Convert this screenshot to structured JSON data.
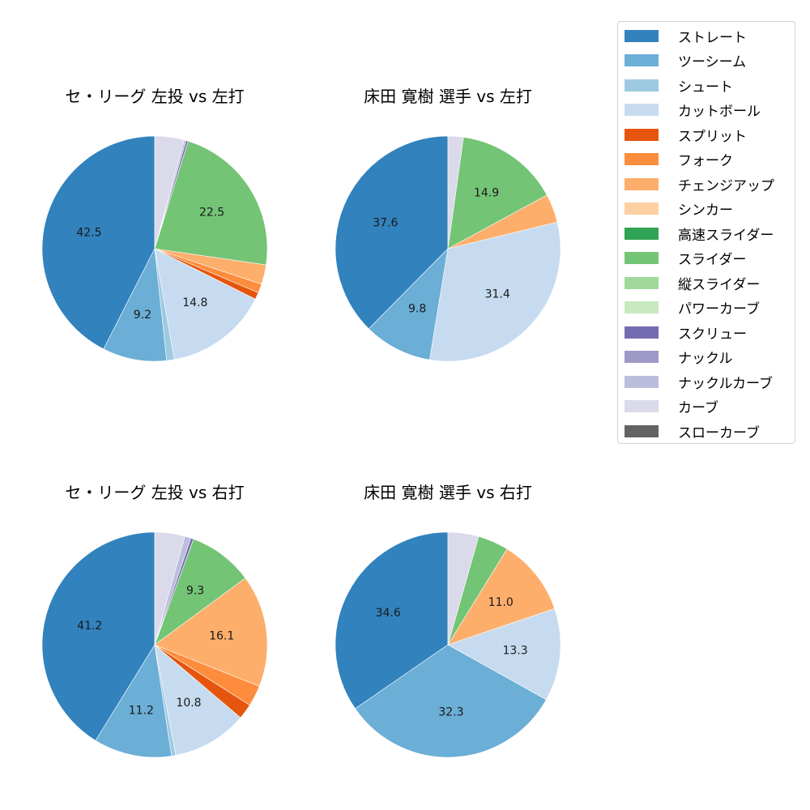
{
  "chart_data": [
    {
      "type": "pie",
      "title": "セ・リーグ 左投 vs 左打",
      "categories": [
        "ストレート",
        "ツーシーム",
        "シュート",
        "カットボール",
        "スプリット",
        "フォーク",
        "チェンジアップ",
        "スライダー",
        "スクリュー",
        "ナックルカーブ",
        "カーブ"
      ],
      "values": [
        42.5,
        9.2,
        1.1,
        14.8,
        1.0,
        1.3,
        2.8,
        22.5,
        0.3,
        0.3,
        4.2
      ],
      "labels_shown": [
        "42.5",
        "9.2",
        "",
        "14.8",
        "",
        "",
        "",
        "22.5",
        "",
        "",
        ""
      ],
      "start_angle": 90,
      "direction": "counterclockwise"
    },
    {
      "type": "pie",
      "title": "床田 寛樹 選手 vs 左打",
      "categories": [
        "ストレート",
        "ツーシーム",
        "カットボール",
        "チェンジアップ",
        "スライダー",
        "カーブ"
      ],
      "values": [
        37.6,
        9.8,
        31.4,
        4.1,
        14.9,
        2.2
      ],
      "labels_shown": [
        "37.6",
        "9.8",
        "31.4",
        "",
        "14.9",
        ""
      ],
      "start_angle": 90,
      "direction": "counterclockwise"
    },
    {
      "type": "pie",
      "title": "セ・リーグ 左投 vs 右打",
      "categories": [
        "ストレート",
        "ツーシーム",
        "シュート",
        "カットボール",
        "スプリット",
        "フォーク",
        "チェンジアップ",
        "スライダー",
        "スクリュー",
        "ナックルカーブ",
        "カーブ"
      ],
      "values": [
        41.2,
        11.2,
        0.6,
        10.8,
        2.2,
        3.0,
        16.1,
        9.3,
        0.4,
        0.9,
        4.3
      ],
      "labels_shown": [
        "41.2",
        "11.2",
        "",
        "10.8",
        "",
        "",
        "16.1",
        "9.3",
        "",
        "",
        ""
      ],
      "start_angle": 90,
      "direction": "counterclockwise"
    },
    {
      "type": "pie",
      "title": "床田 寛樹 選手 vs 右打",
      "categories": [
        "ストレート",
        "ツーシーム",
        "カットボール",
        "チェンジアップ",
        "スライダー",
        "カーブ"
      ],
      "values": [
        34.6,
        32.3,
        13.3,
        11.0,
        4.4,
        4.4
      ],
      "labels_shown": [
        "34.6",
        "32.3",
        "13.3",
        "11.0",
        "",
        ""
      ],
      "start_angle": 90,
      "direction": "counterclockwise"
    }
  ],
  "legend": {
    "items": [
      {
        "label": "ストレート",
        "color": "#3182bd"
      },
      {
        "label": "ツーシーム",
        "color": "#6baed6"
      },
      {
        "label": "シュート",
        "color": "#9ecae1"
      },
      {
        "label": "カットボール",
        "color": "#c6dbef"
      },
      {
        "label": "スプリット",
        "color": "#e6550d"
      },
      {
        "label": "フォーク",
        "color": "#fd8d3c"
      },
      {
        "label": "チェンジアップ",
        "color": "#fdae6b"
      },
      {
        "label": "シンカー",
        "color": "#fdd0a2"
      },
      {
        "label": "高速スライダー",
        "color": "#31a354"
      },
      {
        "label": "スライダー",
        "color": "#74c476"
      },
      {
        "label": "縦スライダー",
        "color": "#a1d99b"
      },
      {
        "label": "パワーカーブ",
        "color": "#c7e9c0"
      },
      {
        "label": "スクリュー",
        "color": "#756bb1"
      },
      {
        "label": "ナックル",
        "color": "#9e9ac8"
      },
      {
        "label": "ナックルカーブ",
        "color": "#bcbddc"
      },
      {
        "label": "カーブ",
        "color": "#dadaeb"
      },
      {
        "label": "スローカーブ",
        "color": "#636363"
      }
    ]
  }
}
